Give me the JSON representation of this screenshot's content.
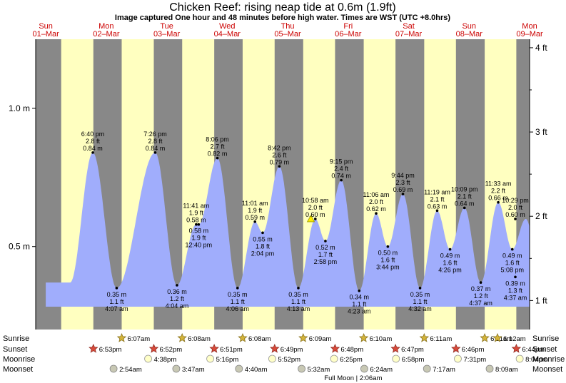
{
  "header": {
    "title": "Chicken Reef: rising  neap tide at 0.6m (1.9ft)",
    "subtitle": "Image captured One hour and 48 minutes before high water. Times are WST (UTC +8.0hrs)"
  },
  "days": [
    {
      "name": "Sun",
      "date": "01–Mar"
    },
    {
      "name": "Mon",
      "date": "02–Mar"
    },
    {
      "name": "Tue",
      "date": "03–Mar"
    },
    {
      "name": "Wed",
      "date": "04–Mar"
    },
    {
      "name": "Thu",
      "date": "05–Mar"
    },
    {
      "name": "Fri",
      "date": "06–Mar"
    },
    {
      "name": "Sat",
      "date": "07–Mar"
    },
    {
      "name": "Sun",
      "date": "08–Mar"
    },
    {
      "name": "Mon",
      "date": "09–Mar"
    }
  ],
  "chart_data": {
    "type": "area",
    "x_unit": "hours from 00:00 Sun 01-Mar (WST)",
    "x_range": [
      -4,
      192
    ],
    "left_axis": {
      "unit": "m",
      "range": [
        0.2,
        1.25
      ],
      "ticks": [
        {
          "v": 0.5,
          "label": "0.5 m"
        },
        {
          "v": 1.0,
          "label": "1.0 m"
        }
      ]
    },
    "right_axis": {
      "unit": "ft",
      "ticks": [
        {
          "v": 1,
          "label": "1 ft"
        },
        {
          "v": 2,
          "label": "2 ft"
        },
        {
          "v": 3,
          "label": "3 ft"
        },
        {
          "v": 4,
          "label": "4 ft"
        }
      ]
    },
    "series_color": "#a0adfc",
    "night_color": "#888888",
    "day_color": "#ffffc0",
    "nights": [
      [
        -4,
        6.12
      ],
      [
        18.88,
        30.13
      ],
      [
        42.87,
        54.13
      ],
      [
        66.85,
        78.13
      ],
      [
        90.82,
        102.15
      ],
      [
        114.8,
        126.17
      ],
      [
        138.78,
        150.18
      ],
      [
        162.77,
        174.18
      ],
      [
        186.73,
        192
      ]
    ],
    "tide_events": [
      {
        "time": "6:40 pm",
        "m": 0.84,
        "ft": "2.8 ft",
        "t": 18.67,
        "type": "high"
      },
      {
        "time": "4:07 am",
        "m": 0.35,
        "ft": "1.1 ft",
        "t": 28.12,
        "type": "low"
      },
      {
        "time": "7:26 pm",
        "m": 0.84,
        "ft": "2.8 ft",
        "t": 43.43,
        "type": "high"
      },
      {
        "time": "4:04 am",
        "m": 0.36,
        "ft": "1.2 ft",
        "t": 52.07,
        "type": "low"
      },
      {
        "time": "11:41 am",
        "m": 0.58,
        "ft": "1.9 ft",
        "t": 59.68,
        "type": "high"
      },
      {
        "time": "12:40 pm",
        "m": 0.58,
        "ft": "1.9 ft",
        "t": 60.67,
        "type": "low"
      },
      {
        "time": "8:06 pm",
        "m": 0.82,
        "ft": "2.7 ft",
        "t": 68.1,
        "type": "high"
      },
      {
        "time": "4:06 am",
        "m": 0.35,
        "ft": "1.1 ft",
        "t": 76.1,
        "type": "low"
      },
      {
        "time": "11:01 am",
        "m": 0.59,
        "ft": "1.9 ft",
        "t": 83.02,
        "type": "high"
      },
      {
        "time": "2:04 pm",
        "m": 0.55,
        "ft": "1.8 ft",
        "t": 86.07,
        "type": "low"
      },
      {
        "time": "8:42 pm",
        "m": 0.79,
        "ft": "2.6 ft",
        "t": 92.7,
        "type": "high"
      },
      {
        "time": "4:13 am",
        "m": 0.35,
        "ft": "1.1 ft",
        "t": 100.22,
        "type": "low"
      },
      {
        "time": "10:58 am",
        "m": 0.6,
        "ft": "2.0 ft",
        "t": 106.97,
        "type": "high"
      },
      {
        "time": "2:58 pm",
        "m": 0.52,
        "ft": "1.7 ft",
        "t": 110.97,
        "type": "low"
      },
      {
        "time": "9:15 pm",
        "m": 0.74,
        "ft": "2.4 ft",
        "t": 117.25,
        "type": "high"
      },
      {
        "time": "4:23 am",
        "m": 0.34,
        "ft": "1.1 ft",
        "t": 124.38,
        "type": "low"
      },
      {
        "time": "11:06 am",
        "m": 0.62,
        "ft": "2.0 ft",
        "t": 131.1,
        "type": "high"
      },
      {
        "time": "3:44 pm",
        "m": 0.5,
        "ft": "1.6 ft",
        "t": 135.73,
        "type": "low"
      },
      {
        "time": "9:44 pm",
        "m": 0.69,
        "ft": "2.3 ft",
        "t": 141.73,
        "type": "high"
      },
      {
        "time": "4:32 am",
        "m": 0.35,
        "ft": "1.1 ft",
        "t": 148.53,
        "type": "low"
      },
      {
        "time": "11:19 am",
        "m": 0.63,
        "ft": "2.1 ft",
        "t": 155.32,
        "type": "high"
      },
      {
        "time": "4:26 pm",
        "m": 0.49,
        "ft": "1.6 ft",
        "t": 160.43,
        "type": "low"
      },
      {
        "time": "10:09 pm",
        "m": 0.64,
        "ft": "2.1 ft",
        "t": 166.15,
        "type": "high"
      },
      {
        "time": "4:37 am",
        "m": 0.37,
        "ft": "1.2 ft",
        "t": 172.62,
        "type": "low"
      },
      {
        "time": "11:33 am",
        "m": 0.66,
        "ft": "2.2 ft",
        "t": 179.55,
        "type": "high"
      },
      {
        "time": "5:08 pm",
        "m": 0.49,
        "ft": "1.6 ft",
        "t": 185.13,
        "type": "low"
      },
      {
        "time": "10:29 pm",
        "m": 0.6,
        "ft": "2.0 ft",
        "t": 190.48,
        "type": "high"
      },
      {
        "time": "4:37 am",
        "m": 0.39,
        "ft": "1.3 ft",
        "t": 196.62,
        "type": "low"
      }
    ],
    "current": {
      "t": 105.2,
      "m": 0.6
    }
  },
  "astro": {
    "row_labels": {
      "sunrise": "Sunrise",
      "sunset": "Sunset",
      "moonrise": "Moonrise",
      "moonset": "Moonset"
    },
    "sunrise": [
      {
        "time": "6:07am",
        "t": 30.12
      },
      {
        "time": "6:08am",
        "t": 54.13
      },
      {
        "time": "6:08am",
        "t": 78.13
      },
      {
        "time": "6:09am",
        "t": 102.15
      },
      {
        "time": "6:10am",
        "t": 126.17
      },
      {
        "time": "6:11am",
        "t": 150.18
      },
      {
        "time": "6:11am",
        "t": 174.18
      },
      {
        "time": "6:12am",
        "t": 198.2
      }
    ],
    "sunset": [
      {
        "time": "6:53pm",
        "t": 18.88
      },
      {
        "time": "6:52pm",
        "t": 42.87
      },
      {
        "time": "6:51pm",
        "t": 66.85
      },
      {
        "time": "6:49pm",
        "t": 90.82
      },
      {
        "time": "6:48pm",
        "t": 114.8
      },
      {
        "time": "6:47pm",
        "t": 138.78
      },
      {
        "time": "6:46pm",
        "t": 162.77
      },
      {
        "time": "6:44pm",
        "t": 186.73
      }
    ],
    "moonrise": [
      {
        "time": "4:38pm",
        "t": 40.63
      },
      {
        "time": "5:16pm",
        "t": 65.27
      },
      {
        "time": "5:52pm",
        "t": 89.87
      },
      {
        "time": "6:25pm",
        "t": 114.42
      },
      {
        "time": "6:58pm",
        "t": 138.97
      },
      {
        "time": "7:31pm",
        "t": 163.52
      },
      {
        "time": "8:04pm",
        "t": 188.07
      }
    ],
    "moonset": [
      {
        "time": "2:54am",
        "t": 26.9
      },
      {
        "time": "3:47am",
        "t": 51.78
      },
      {
        "time": "4:40am",
        "t": 76.67
      },
      {
        "time": "5:32am",
        "t": 101.53
      },
      {
        "time": "6:24am",
        "t": 126.4
      },
      {
        "time": "7:17am",
        "t": 151.28
      },
      {
        "time": "8:09am",
        "t": 176.15
      }
    ],
    "full_moon": "Full Moon | 2:06am"
  }
}
